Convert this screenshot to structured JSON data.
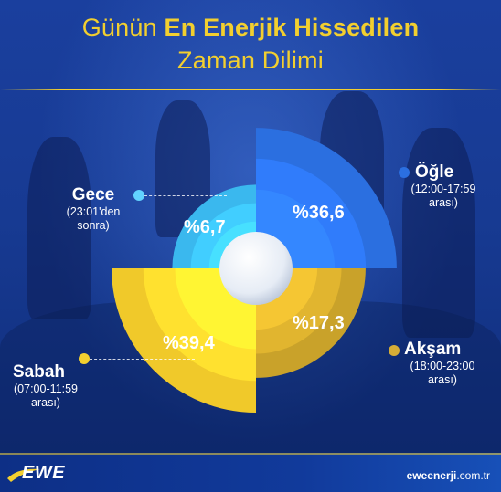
{
  "title": {
    "line1_prefix": "Günün",
    "line1_bold": "En Enerjik Hissedilen",
    "line2": "Zaman Dilimi"
  },
  "chart_data": {
    "type": "pie",
    "slices": [
      {
        "name": "Öğle",
        "range": "(12:00-17:59 arası)",
        "value": 36.6,
        "label": "%36,6",
        "color": "#2b6fe0"
      },
      {
        "name": "Akşam",
        "range": "(18:00-23:00 arası)",
        "value": 17.3,
        "label": "%17,3",
        "color": "#c9a22a"
      },
      {
        "name": "Sabah",
        "range": "(07:00-11:59 arası)",
        "value": 39.4,
        "label": "%39,4",
        "color": "#f0c92a"
      },
      {
        "name": "Gece",
        "range": "(23:01'den sonra)",
        "value": 6.7,
        "label": "%6,7",
        "color": "#3ab8ee"
      }
    ]
  },
  "labels": {
    "ogle": {
      "name": "Öğle",
      "range1": "(12:00-17:59",
      "range2": "arası)"
    },
    "aksam": {
      "name": "Akşam",
      "range1": "(18:00-23:00",
      "range2": "arası)"
    },
    "sabah": {
      "name": "Sabah",
      "range1": "(07:00-11:59",
      "range2": "arası)"
    },
    "gece": {
      "name": "Gece",
      "range1": "(23:01'den",
      "range2": "sonra)"
    }
  },
  "footer": {
    "logo": "EWE",
    "site_bold": "eweenerji",
    "site_rest": ".com.tr"
  },
  "colors": {
    "accent_yellow": "#f2cf2f",
    "ogle_blue": "#2b6fe0",
    "gece_cyan": "#3ab8ee",
    "sabah_yellow": "#f0c92a",
    "aksam_gold": "#c9a22a"
  }
}
